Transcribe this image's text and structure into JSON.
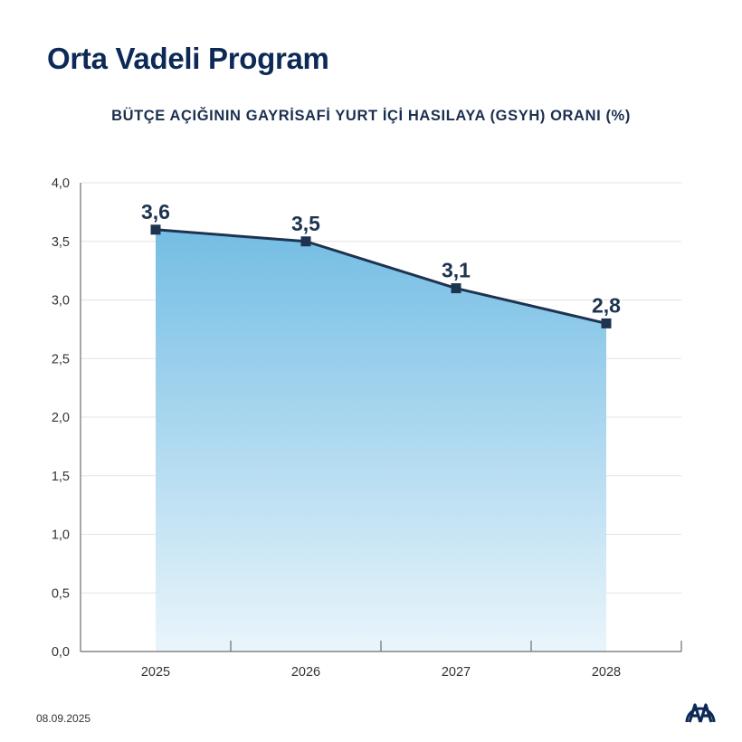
{
  "header": {
    "title": "Orta Vadeli Program"
  },
  "footer": {
    "date": "08.09.2025",
    "logo_text": "AA"
  },
  "colors": {
    "title": "#0d2a57",
    "line": "#1d3350",
    "fill_top": "#74bde4",
    "fill_bottom": "#e9f5fb",
    "grid": "#e3e3e3",
    "axis": "#6d6d6d"
  },
  "chart_data": {
    "type": "area",
    "title": "BÜTÇE AÇIĞININ GAYRİSAFİ YURT İÇİ HASILAYA (GSYH) ORANI (%)",
    "xlabel": "",
    "ylabel": "",
    "categories": [
      "2025",
      "2026",
      "2027",
      "2028"
    ],
    "series": [
      {
        "values": [
          3.6,
          3.5,
          3.1,
          2.8
        ]
      }
    ],
    "data_labels": [
      "3,6",
      "3,5",
      "3,1",
      "2,8"
    ],
    "ylim": [
      0,
      4.0
    ],
    "yticks": [
      0,
      0.5,
      1.0,
      1.5,
      2.0,
      2.5,
      3.0,
      3.5,
      4.0
    ],
    "ytick_labels": [
      "0,0",
      "0,5",
      "1,0",
      "1,5",
      "2,0",
      "2,5",
      "3,0",
      "3,5",
      "4,0"
    ],
    "grid": true,
    "legend": "none"
  }
}
